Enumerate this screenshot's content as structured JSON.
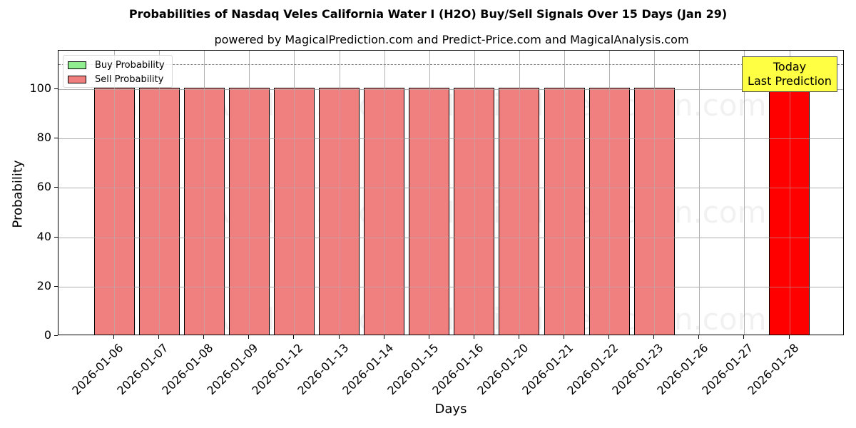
{
  "header": {
    "title": "Probabilities of Nasdaq Veles California Water I (H2O) Buy/Sell Signals Over 15 Days (Jan 29)",
    "subtitle": "powered by MagicalPrediction.com and Predict-Price.com and MagicalAnalysis.com"
  },
  "axes": {
    "xlabel": "Days",
    "ylabel": "Probability",
    "yticks": [
      "0",
      "20",
      "40",
      "60",
      "80",
      "100"
    ]
  },
  "legend": {
    "items": [
      {
        "label": "Buy Probability",
        "color": "#90ee90"
      },
      {
        "label": "Sell Probability",
        "color": "#f08080"
      }
    ]
  },
  "annotation": {
    "line1": "Today",
    "line2": "Last Prediction",
    "color": "#ffff44"
  },
  "watermarks": [
    "MagicalAnalysis.com",
    "MagicalPrediction.com"
  ],
  "colors": {
    "sell": "#f08080",
    "sell_today": "#ff0000",
    "buy": "#90ee90",
    "threshold_line": "#808080"
  },
  "chart_data": {
    "type": "bar",
    "title": "Probabilities of Nasdaq Veles California Water I (H2O) Buy/Sell Signals Over 15 Days (Jan 29)",
    "subtitle": "powered by MagicalPrediction.com and Predict-Price.com and MagicalAnalysis.com",
    "xlabel": "Days",
    "ylabel": "Probability",
    "ylim": [
      0,
      115
    ],
    "yticks": [
      0,
      20,
      40,
      60,
      80,
      100
    ],
    "grid": true,
    "legend_position": "upper left",
    "categories": [
      "2026-01-06",
      "2026-01-07",
      "2026-01-08",
      "2026-01-09",
      "2026-01-12",
      "2026-01-13",
      "2026-01-14",
      "2026-01-15",
      "2026-01-16",
      "2026-01-20",
      "2026-01-21",
      "2026-01-22",
      "2026-01-23",
      "2026-01-26",
      "2026-01-27",
      "2026-01-28"
    ],
    "series": [
      {
        "name": "Buy Probability",
        "color": "#90ee90",
        "values": [
          0,
          0,
          0,
          0,
          0,
          0,
          0,
          0,
          0,
          0,
          0,
          0,
          0,
          0,
          0,
          0
        ]
      },
      {
        "name": "Sell Probability",
        "color": "#f08080",
        "values": [
          100,
          100,
          100,
          100,
          100,
          100,
          100,
          100,
          100,
          100,
          100,
          100,
          100,
          0,
          0,
          100
        ]
      }
    ],
    "highlight": {
      "category": "2026-01-28",
      "color": "#ff0000",
      "label": "Today\nLast Prediction"
    },
    "reference_line": {
      "y": 110,
      "style": "dashed",
      "color": "#808080"
    }
  }
}
